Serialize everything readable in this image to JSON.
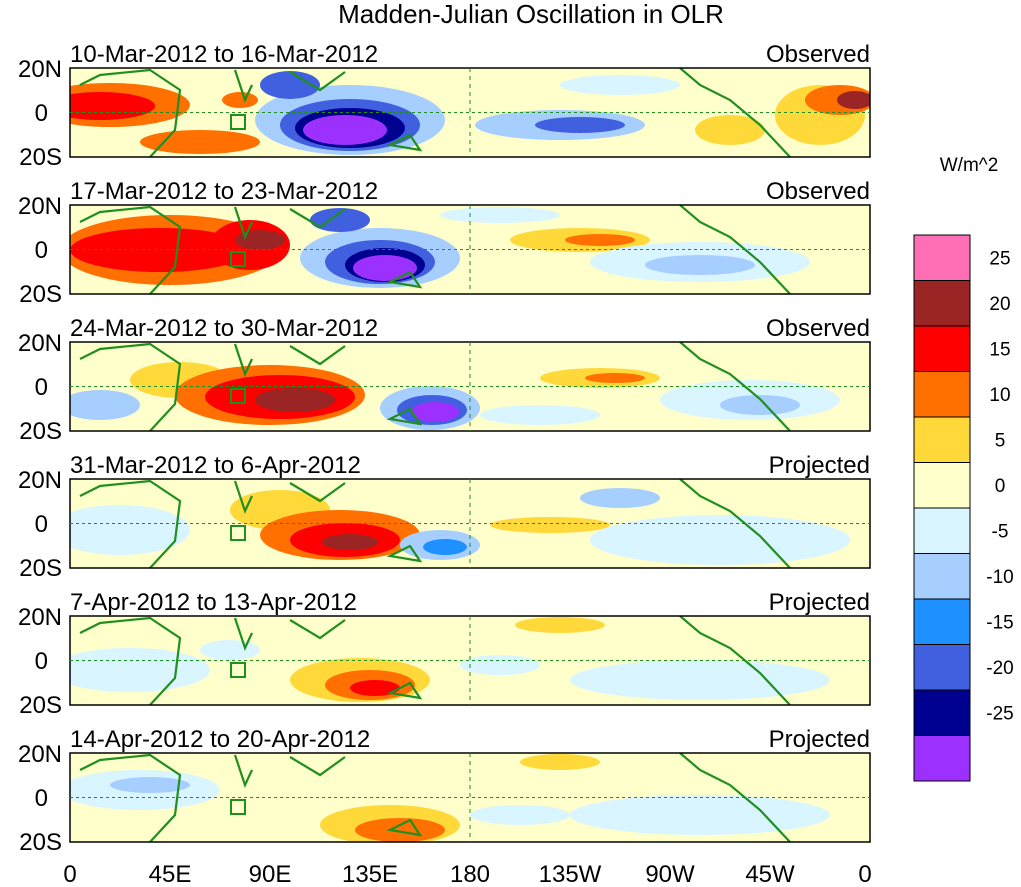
{
  "title": "Madden-Julian Oscillation in OLR",
  "units": "W/m^2",
  "lat_labels": [
    "20N",
    "0",
    "20S"
  ],
  "lon_labels": [
    "0",
    "45E",
    "90E",
    "135E",
    "180",
    "135W",
    "90W",
    "45W",
    "0"
  ],
  "panels": [
    {
      "period": "10-Mar-2012 to 16-Mar-2012",
      "status": "Observed"
    },
    {
      "period": "17-Mar-2012 to 23-Mar-2012",
      "status": "Observed"
    },
    {
      "period": "24-Mar-2012 to 30-Mar-2012",
      "status": "Observed"
    },
    {
      "period": "31-Mar-2012 to 6-Apr-2012",
      "status": "Projected"
    },
    {
      "period": "7-Apr-2012 to 13-Apr-2012",
      "status": "Projected"
    },
    {
      "period": "14-Apr-2012 to 20-Apr-2012",
      "status": "Projected"
    }
  ],
  "colorbar": {
    "levels": [
      "25",
      "20",
      "15",
      "10",
      "5",
      "0",
      "-5",
      "-10",
      "-15",
      "-20",
      "-25"
    ],
    "colors": [
      "#ff6fb6",
      "#9b2424",
      "#ff0000",
      "#ff7000",
      "#ffd83a",
      "#ffffcc",
      "#d9f5ff",
      "#a6cfff",
      "#1e90ff",
      "#4060e0",
      "#000090",
      "#9b30ff"
    ]
  },
  "colors": {
    "land_outline": "#1f8f1f",
    "equator_line": "#1f8f1f",
    "background_field": "#ffffcc"
  }
}
